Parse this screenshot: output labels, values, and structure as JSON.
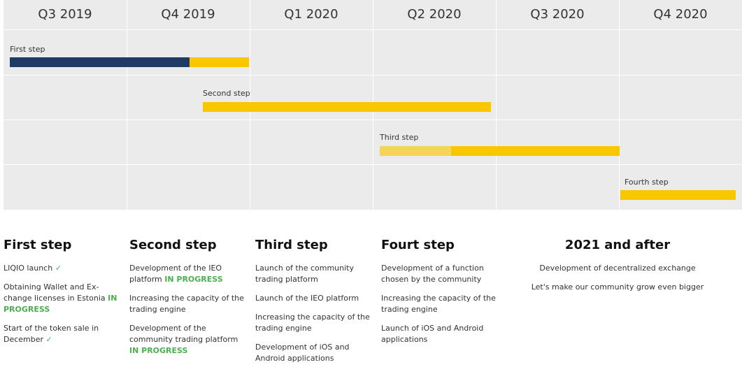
{
  "timeline": {
    "quarters": [
      "Q3 2019",
      "Q4 2019",
      "Q1 2020",
      "Q2 2020",
      "Q3 2020",
      "Q4 2020"
    ],
    "steps": [
      "First step",
      "Second step",
      "Third step",
      "Fourth step"
    ]
  },
  "columns": [
    {
      "title": "First step",
      "items": [
        {
          "text": "LIQIO launch",
          "status": "✓"
        },
        {
          "text": "Obtaining Wallet and Ex­change licenses in Estonia",
          "status": "IN PROGRESS"
        },
        {
          "text": "Start of the token sale in December",
          "status": "✓"
        }
      ]
    },
    {
      "title": "Second step",
      "items": [
        {
          "text": "Development of the IEO platform",
          "status": "IN PROGRESS"
        },
        {
          "text": "Increasing the capacity of the trading engine"
        },
        {
          "text": "Development of the community trading plat­form",
          "status": "IN PROGRESS"
        }
      ]
    },
    {
      "title": "Third step",
      "items": [
        {
          "text": "Launch of the community trading platform"
        },
        {
          "text": "Launch of the IEO platform"
        },
        {
          "text": "Increasing the capacity of the trading engine"
        },
        {
          "text": "Development of iOS and Android applications"
        }
      ]
    },
    {
      "title": "Fourt step",
      "items": [
        {
          "text": "Development of a function chosen by the community"
        },
        {
          "text": "Increasing the capacity of the trading engine"
        },
        {
          "text": "Launch of iOS and Android applications"
        }
      ]
    },
    {
      "title": "2021 and after",
      "items": [
        {
          "text": "Development of decentralized exchange"
        },
        {
          "text": "Let's make our community grow even bigger"
        }
      ]
    }
  ]
}
